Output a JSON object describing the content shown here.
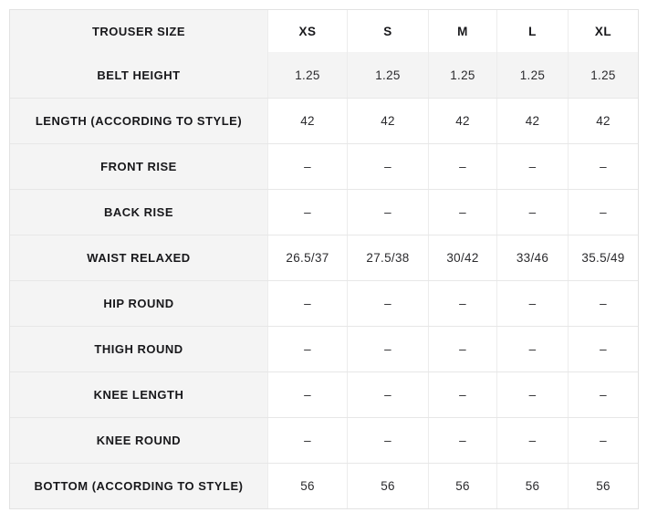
{
  "table": {
    "title": "size-chart",
    "header": {
      "label": "TROUSER SIZE",
      "columns": [
        "XS",
        "S",
        "M",
        "L",
        "XL"
      ]
    },
    "rows": [
      {
        "label": "BELT HEIGHT",
        "values": [
          "1.25",
          "1.25",
          "1.25",
          "1.25",
          "1.25"
        ],
        "highlight": true
      },
      {
        "label": "LENGTH (ACCORDING TO STYLE)",
        "values": [
          "42",
          "42",
          "42",
          "42",
          "42"
        ],
        "highlight": false
      },
      {
        "label": "FRONT RISE",
        "values": [
          "–",
          "–",
          "–",
          "–",
          "–"
        ],
        "highlight": false
      },
      {
        "label": "BACK RISE",
        "values": [
          "–",
          "–",
          "–",
          "–",
          "–"
        ],
        "highlight": false
      },
      {
        "label": "WAIST RELAXED",
        "values": [
          "26.5/37",
          "27.5/38",
          "30/42",
          "33/46",
          "35.5/49"
        ],
        "highlight": false
      },
      {
        "label": "HIP ROUND",
        "values": [
          "–",
          "–",
          "–",
          "–",
          "–"
        ],
        "highlight": false
      },
      {
        "label": "THIGH ROUND",
        "values": [
          "–",
          "–",
          "–",
          "–",
          "–"
        ],
        "highlight": false
      },
      {
        "label": "KNEE LENGTH",
        "values": [
          "–",
          "–",
          "–",
          "–",
          "–"
        ],
        "highlight": false
      },
      {
        "label": "KNEE ROUND",
        "values": [
          "–",
          "–",
          "–",
          "–",
          "–"
        ],
        "highlight": false
      },
      {
        "label": "BOTTOM (ACCORDING TO STYLE)",
        "values": [
          "56",
          "56",
          "56",
          "56",
          "56"
        ],
        "highlight": false
      }
    ],
    "colors": {
      "label_column_bg": "#f4f4f4",
      "highlight_row_bg": "#f4f4f4",
      "border": "#e7e7e7",
      "label_text": "#18181b",
      "value_text": "#2b2b2e"
    }
  }
}
